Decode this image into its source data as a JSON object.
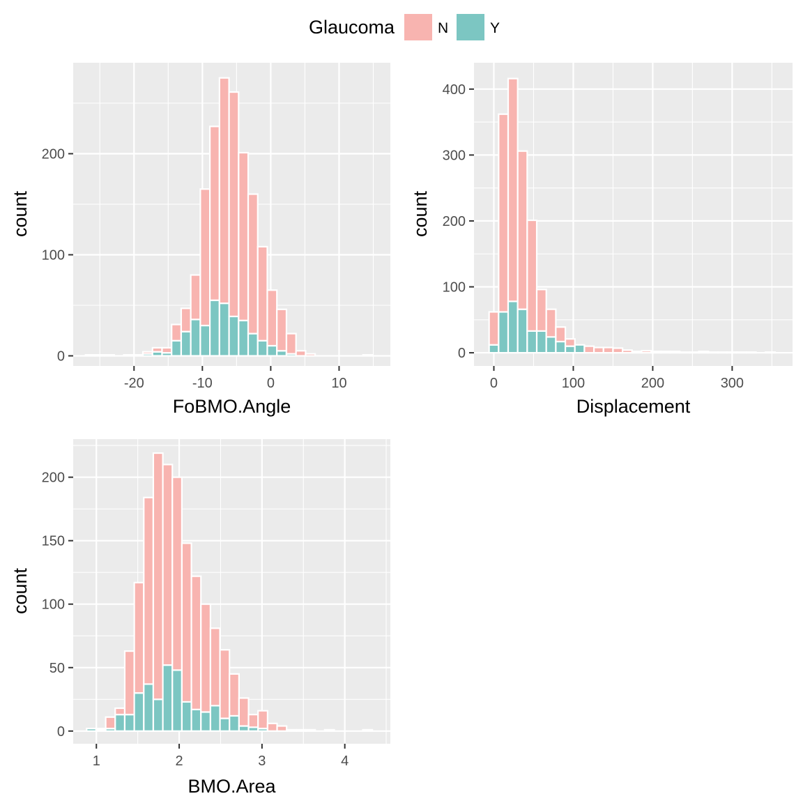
{
  "legend": {
    "title": "Glaucoma",
    "items": [
      {
        "label": "N",
        "color": "#f8b4b0"
      },
      {
        "label": "Y",
        "color": "#7cc6c2"
      }
    ]
  },
  "chart_data": [
    {
      "type": "bar",
      "stacked": true,
      "xlabel": "FoBMO.Angle",
      "ylabel": "count",
      "xlim": [
        -28.9,
        17.5
      ],
      "ylim": [
        -10,
        290
      ],
      "xticks": [
        -30,
        -20,
        -10,
        0,
        10
      ],
      "xtick_labels": [
        "-30",
        "-20",
        "-10",
        "0",
        "10"
      ],
      "yticks": [
        0,
        100,
        200
      ],
      "ytick_labels": [
        "0",
        "100",
        "200"
      ],
      "bin_width": 1.4,
      "bin_centers": [
        -26.4,
        -25,
        -23.6,
        -22.2,
        -20.8,
        -19.4,
        -18,
        -16.6,
        -15.2,
        -13.8,
        -12.4,
        -11,
        -9.6,
        -8.2,
        -6.8,
        -5.4,
        -4,
        -2.6,
        -1.2,
        0.2,
        1.6,
        3,
        4.4,
        5.8,
        7.2,
        8.6,
        10,
        11.4,
        12.8,
        14.2
      ],
      "series": [
        {
          "name": "Y",
          "values": [
            0,
            0,
            0,
            0,
            0,
            0,
            2,
            4,
            3,
            15,
            24,
            36,
            30,
            55,
            52,
            39,
            35,
            22,
            15,
            10,
            5,
            2,
            0,
            0,
            0,
            0,
            0,
            0,
            0,
            0
          ]
        },
        {
          "name": "N",
          "values": [
            1,
            1,
            1,
            0,
            1,
            1,
            2,
            4,
            5,
            16,
            23,
            44,
            135,
            172,
            223,
            222,
            166,
            138,
            93,
            55,
            41,
            20,
            5,
            2,
            0,
            0,
            0,
            0,
            0,
            1
          ]
        }
      ]
    },
    {
      "type": "bar",
      "stacked": true,
      "xlabel": "Displacement",
      "ylabel": "count",
      "xlim": [
        -25,
        376
      ],
      "ylim": [
        -20,
        440
      ],
      "xticks": [
        0,
        100,
        200,
        300
      ],
      "xtick_labels": [
        "0",
        "100",
        "200",
        "300"
      ],
      "yticks": [
        0,
        100,
        200,
        300,
        400
      ],
      "ytick_labels": [
        "0",
        "100",
        "200",
        "300",
        "400"
      ],
      "bin_width": 12,
      "bin_centers": [
        0,
        12,
        24,
        36,
        48,
        60,
        72,
        84,
        96,
        108,
        120,
        132,
        144,
        156,
        168,
        180,
        192,
        204,
        216,
        228,
        240,
        252,
        264,
        276,
        288,
        300,
        312,
        324,
        336,
        348
      ],
      "series": [
        {
          "name": "Y",
          "values": [
            12,
            62,
            78,
            66,
            33,
            33,
            24,
            17,
            10,
            12,
            0,
            0,
            0,
            0,
            0,
            0,
            0,
            0,
            0,
            0,
            0,
            0,
            0,
            0,
            0,
            0,
            0,
            0,
            0,
            0
          ]
        },
        {
          "name": "N",
          "values": [
            50,
            300,
            338,
            240,
            168,
            63,
            42,
            22,
            11,
            0,
            10,
            8,
            8,
            7,
            4,
            2,
            3,
            2,
            2,
            2,
            1,
            1,
            2,
            1,
            1,
            1,
            1,
            1,
            0,
            1
          ]
        }
      ]
    },
    {
      "type": "bar",
      "stacked": true,
      "xlabel": "BMO.Area",
      "ylabel": "count",
      "xlim": [
        0.72,
        4.55
      ],
      "ylim": [
        -10,
        230
      ],
      "xticks": [
        1,
        2,
        3,
        4
      ],
      "xtick_labels": [
        "1",
        "2",
        "3",
        "4"
      ],
      "yticks": [
        0,
        50,
        100,
        150,
        200
      ],
      "ytick_labels": [
        "0",
        "50",
        "100",
        "150",
        "200"
      ],
      "bin_width": 0.115,
      "bin_centers": [
        0.94,
        1.055,
        1.17,
        1.285,
        1.4,
        1.515,
        1.63,
        1.745,
        1.86,
        1.975,
        2.09,
        2.205,
        2.32,
        2.435,
        2.55,
        2.665,
        2.78,
        2.895,
        3.01,
        3.125,
        3.24,
        3.355,
        3.47,
        3.585,
        3.7,
        3.815,
        3.93,
        4.045,
        4.16,
        4.275
      ],
      "series": [
        {
          "name": "Y",
          "values": [
            2,
            1,
            2,
            13,
            13,
            30,
            37,
            25,
            52,
            48,
            23,
            17,
            15,
            20,
            10,
            12,
            4,
            3,
            2,
            0,
            0,
            0,
            0,
            0,
            0,
            0,
            0,
            0,
            0,
            0
          ]
        },
        {
          "name": "N",
          "values": [
            0,
            1,
            9,
            5,
            50,
            87,
            147,
            194,
            158,
            152,
            125,
            105,
            85,
            61,
            54,
            33,
            22,
            10,
            14,
            6,
            4,
            1,
            1,
            1,
            0,
            1,
            0,
            0,
            0,
            1
          ]
        }
      ]
    }
  ]
}
